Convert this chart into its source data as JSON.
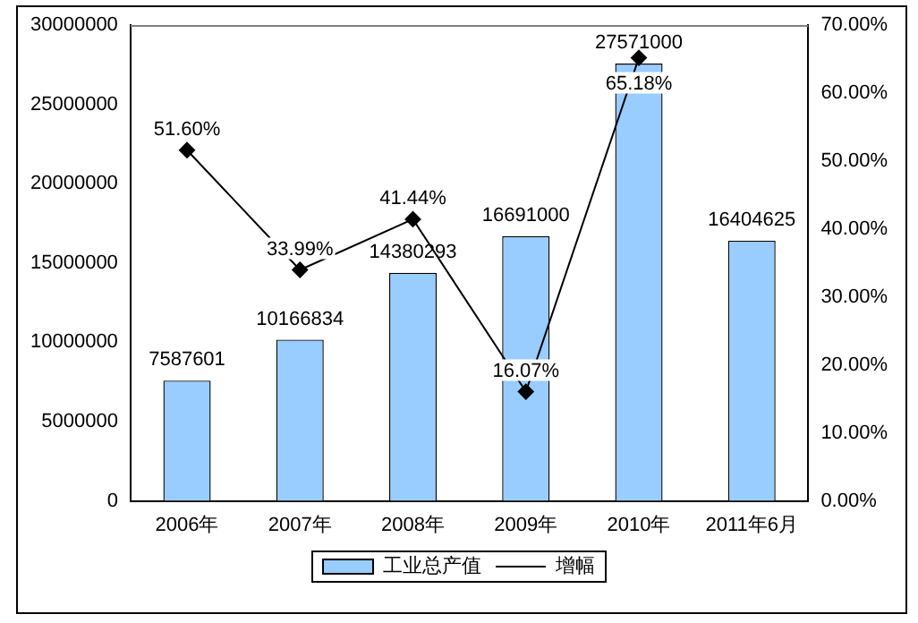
{
  "chart_data": {
    "type": "bar",
    "categories": [
      "2006年",
      "2007年",
      "2008年",
      "2009年",
      "2010年",
      "2011年6月"
    ],
    "series": [
      {
        "name": "工业总产值",
        "color": "#99ccff",
        "values": [
          7587601,
          10166834,
          14380293,
          16691000,
          27571000,
          16404625
        ],
        "value_labels": [
          "7587601",
          "10166834",
          "14380293",
          "16691000",
          "27571000",
          "16404625"
        ]
      },
      {
        "name": "增幅",
        "type": "line",
        "axis": "y2",
        "color": "#000000",
        "marker": "diamond",
        "line_style": "solid",
        "values": [
          51.6,
          33.99,
          41.44,
          16.07,
          65.18,
          null
        ],
        "value_labels": [
          "51.60%",
          "33.99%",
          "41.44%",
          "16.07%",
          "65.18%",
          null
        ]
      }
    ],
    "ylim": [
      0,
      30000000
    ],
    "yticks": [
      0,
      5000000,
      10000000,
      15000000,
      20000000,
      25000000,
      30000000
    ],
    "y2lim": [
      0,
      70
    ],
    "y2ticks": [
      {
        "value": 0,
        "label": "0.00%"
      },
      {
        "value": 10,
        "label": "10.00%"
      },
      {
        "value": 20,
        "label": "20.00%"
      },
      {
        "value": 30,
        "label": "30.00%"
      },
      {
        "value": 40,
        "label": "40.00%"
      },
      {
        "value": 50,
        "label": "50.00%"
      },
      {
        "value": 60,
        "label": "60.00%"
      },
      {
        "value": 70,
        "label": "70.00%"
      }
    ],
    "grid": false,
    "legend": "bottom"
  }
}
